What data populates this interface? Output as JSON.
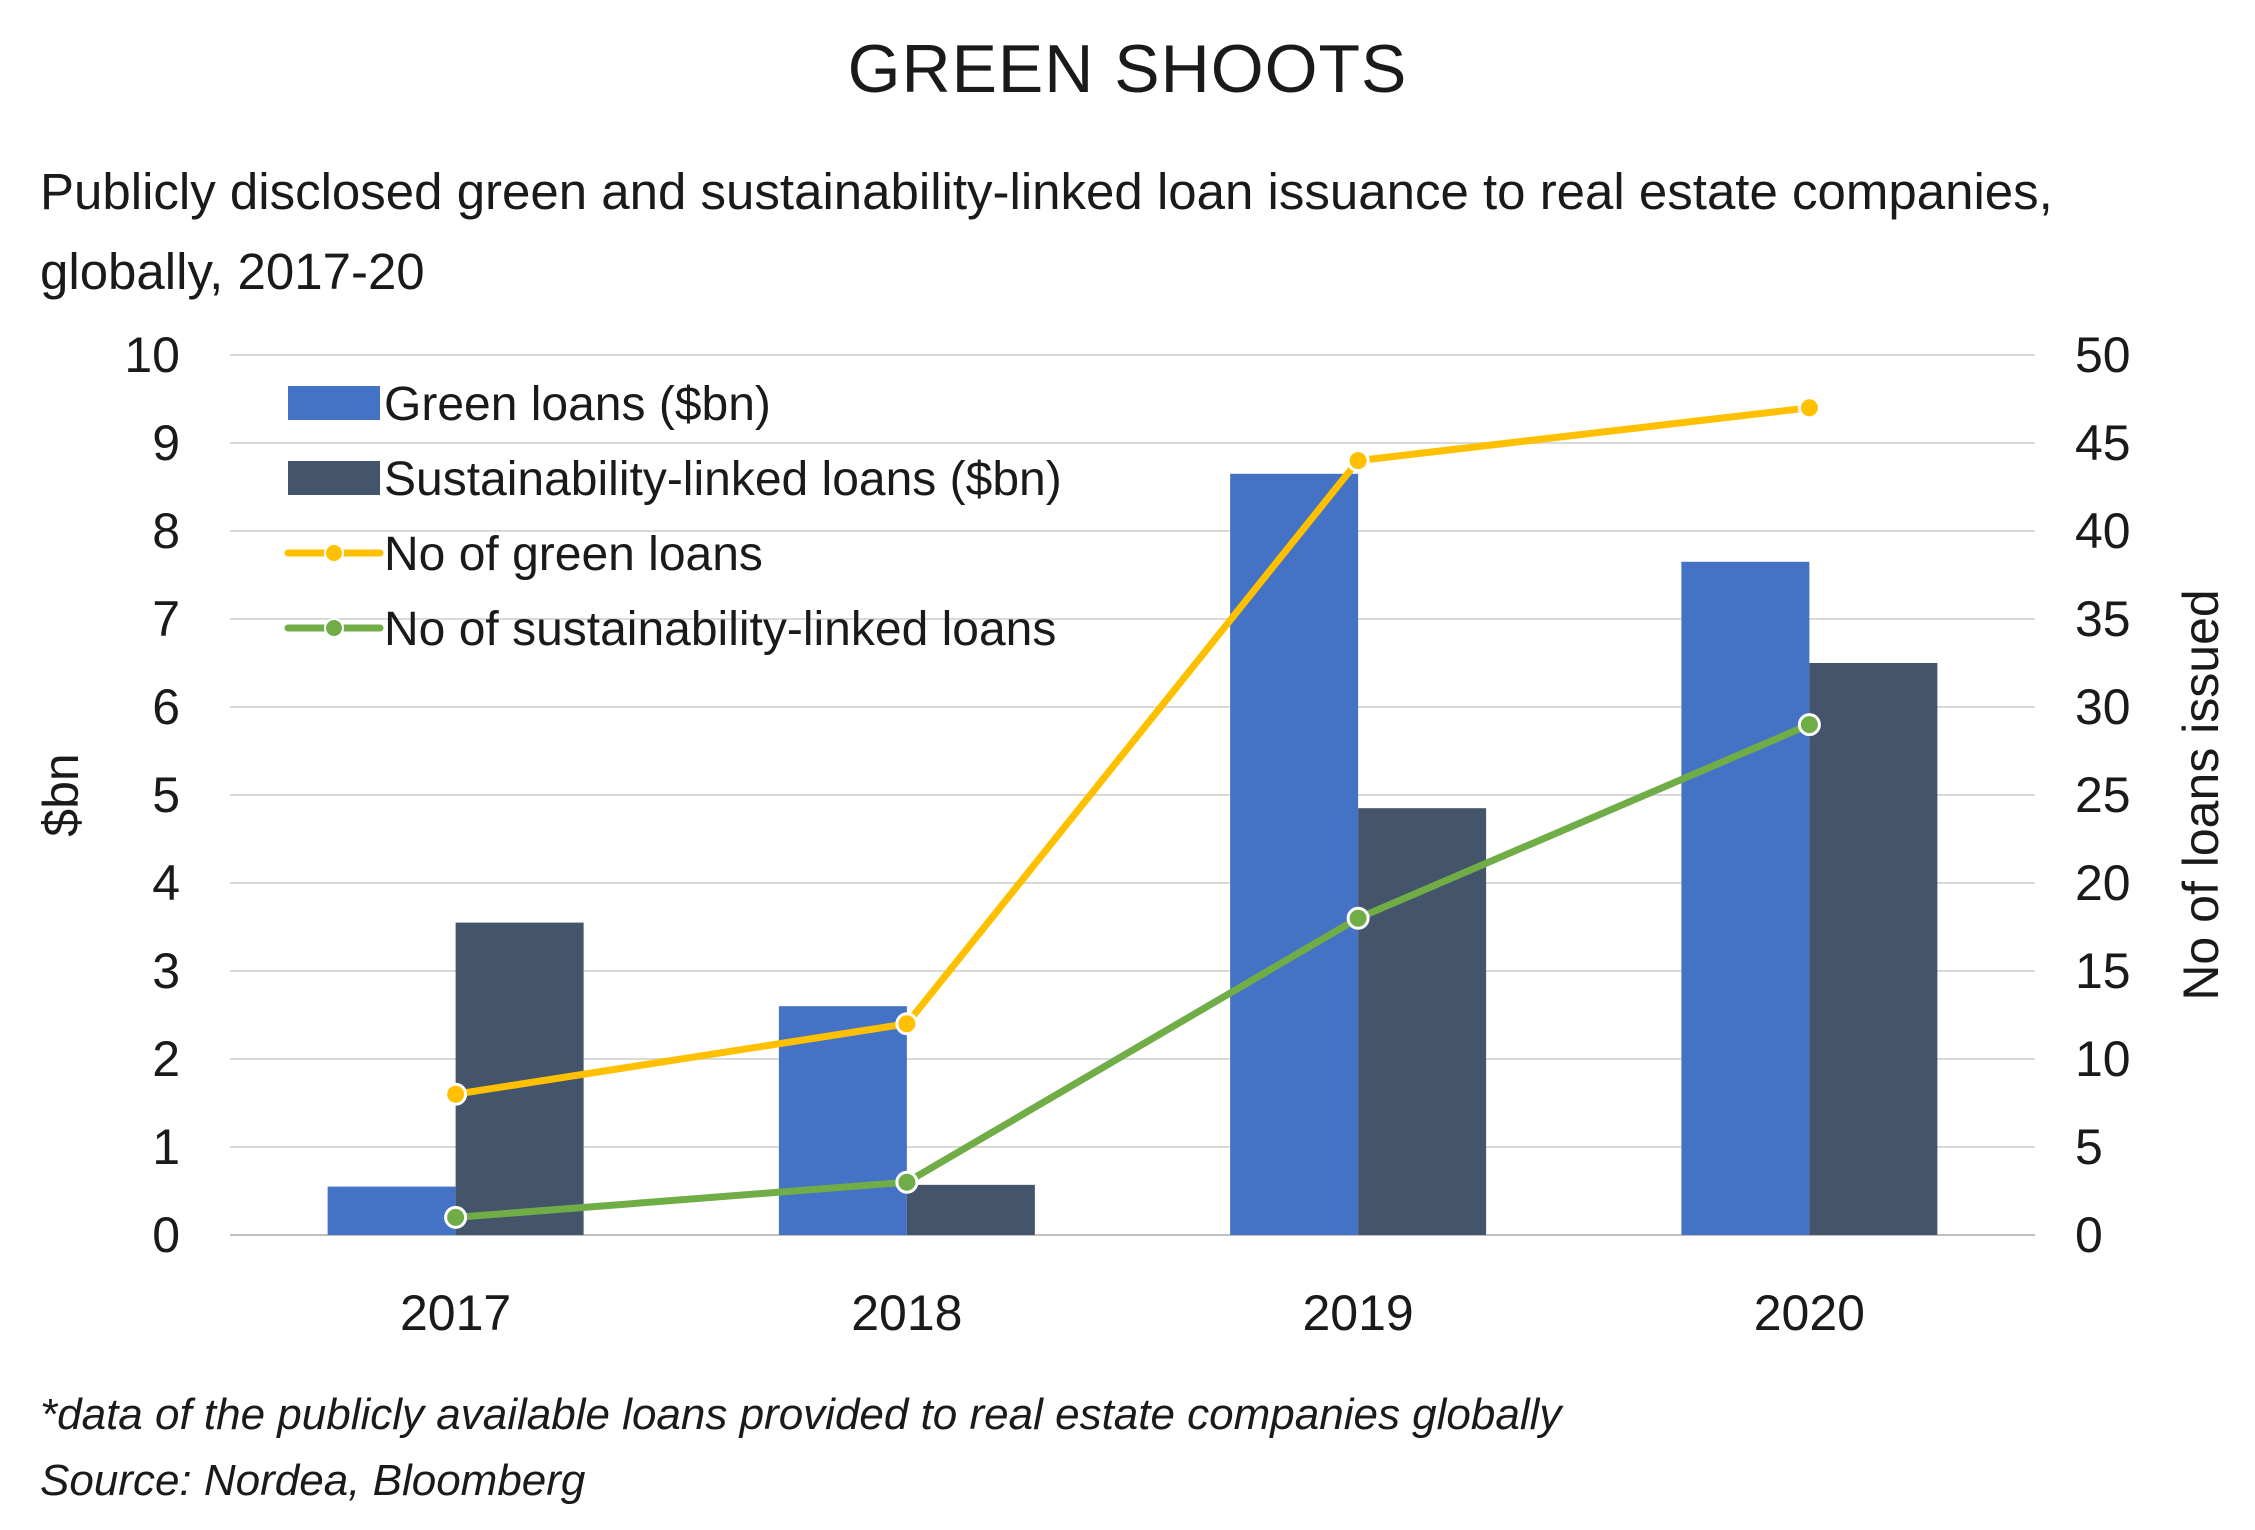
{
  "title": "GREEN SHOOTS",
  "subtitle": "Publicly disclosed green and sustainability-linked loan issuance to real estate companies, globally, 2017-20",
  "footnote": "*data of the publicly available loans provided to real estate companies globally",
  "source": "Source: Nordea, Bloomberg",
  "colors": {
    "green_loans": "#4472C4",
    "sustainability_linked_loans": "#44546A",
    "no_green_loans": "#FFC000",
    "no_sustainability_linked_loans": "#70AD47",
    "gridline": "#d9d9d9"
  },
  "chart_data": {
    "type": "bar",
    "categories": [
      "2017",
      "2018",
      "2019",
      "2020"
    ],
    "series": [
      {
        "name": "Green loans ($bn)",
        "type": "bar",
        "axis": "left",
        "values": [
          0.55,
          2.6,
          8.65,
          7.65
        ]
      },
      {
        "name": "Sustainability-linked loans ($bn)",
        "type": "bar",
        "axis": "left",
        "values": [
          3.55,
          0.57,
          4.85,
          6.5
        ]
      },
      {
        "name": "No of green loans",
        "type": "line",
        "axis": "right",
        "values": [
          8,
          12,
          44,
          47
        ]
      },
      {
        "name": "No of sustainability-linked loans",
        "type": "line",
        "axis": "right",
        "values": [
          1,
          3,
          18,
          29
        ]
      }
    ],
    "ylabel": "$bn",
    "ylabel_right": "No of loans issued",
    "ylim": [
      0,
      10
    ],
    "ylim_right": [
      0,
      50
    ],
    "yticks": [
      "0",
      "1",
      "2",
      "3",
      "4",
      "5",
      "6",
      "7",
      "8",
      "9",
      "10"
    ],
    "yticks_right": [
      "0",
      "5",
      "10",
      "15",
      "20",
      "25",
      "30",
      "35",
      "40",
      "45",
      "50"
    ],
    "grid": true,
    "legend_position": "top-left"
  }
}
